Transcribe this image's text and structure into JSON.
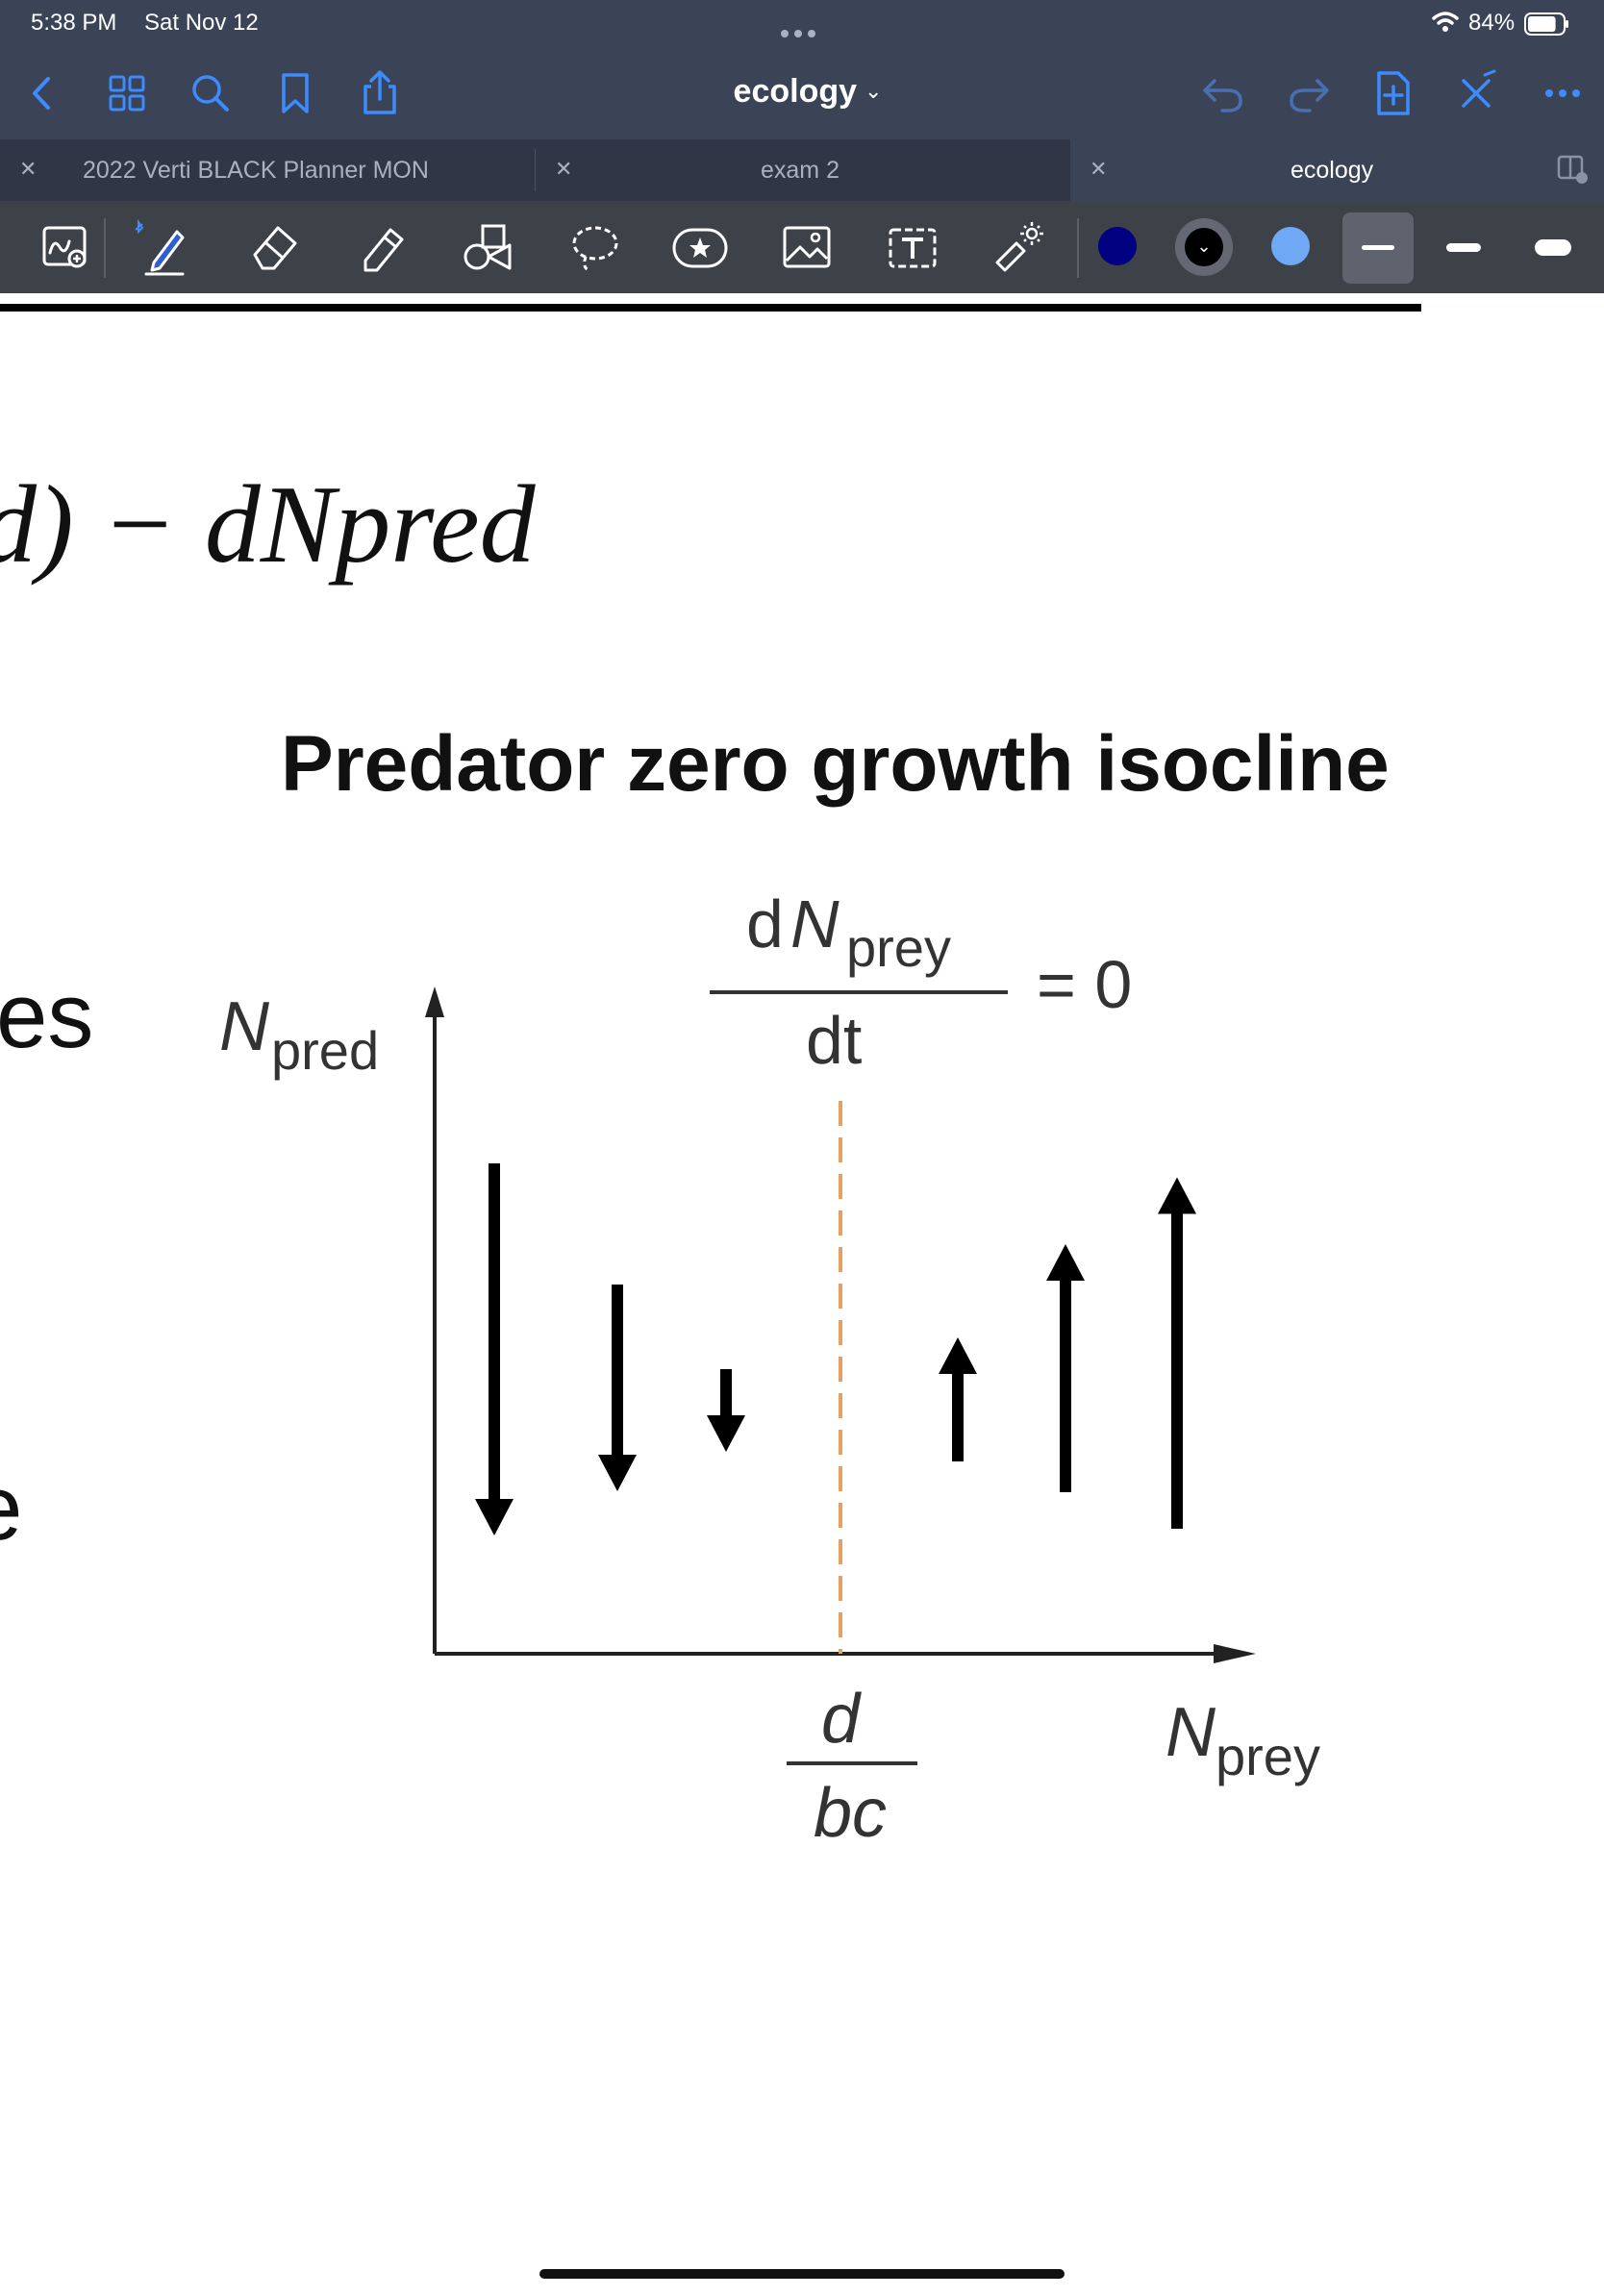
{
  "status_bar": {
    "time": "5:38 PM",
    "date": "Sat Nov 12",
    "battery": "84%",
    "battery_level": 0.84
  },
  "nav": {
    "document_title": "ecology",
    "icons": [
      "back-chevron-icon",
      "thumbnails-grid-icon",
      "search-icon",
      "bookmark-icon",
      "share-icon",
      "undo-icon",
      "redo-icon",
      "add-page-icon",
      "close-pen-mode-icon",
      "more-icon"
    ]
  },
  "tabs": [
    {
      "label": "2022 Verti BLACK Planner MON",
      "active": false
    },
    {
      "label": "exam 2",
      "active": false
    },
    {
      "label": "ecology",
      "active": true
    }
  ],
  "toolbar": {
    "tools": [
      "zoom-window-icon",
      "pen-icon",
      "eraser-icon",
      "highlighter-icon",
      "shapes-icon",
      "lasso-icon",
      "elements-icon",
      "image-icon",
      "text-icon",
      "laser-pointer-icon"
    ],
    "colors": [
      "#000080",
      "#000000",
      "#6fa8f5"
    ],
    "selected_color": "#000000",
    "stroke_widths": [
      "thin",
      "medium",
      "thick"
    ],
    "selected_stroke": "thin"
  },
  "page": {
    "formula_fragment": "d) − dNpred",
    "heading": "Predator zero growth isocline",
    "side_fragment_1": "es",
    "side_fragment_2": "e"
  },
  "diagram": {
    "y_axis_label_main": "N",
    "y_axis_label_sub": "pred",
    "x_axis_label_main": "N",
    "x_axis_label_sub": "prey",
    "isocline_label_top_d": "d",
    "isocline_label_top_N": "N",
    "isocline_label_top_sub": "prey",
    "isocline_label_bottom": "dt",
    "isocline_equals": "= 0",
    "threshold_numerator": "d",
    "threshold_denominator": "bc",
    "isocline_color": "#e8a060",
    "arrows": [
      {
        "direction": "down",
        "length": 0.9
      },
      {
        "direction": "down",
        "length": 0.5
      },
      {
        "direction": "down",
        "length": 0.2
      },
      {
        "direction": "up",
        "length": 0.3
      },
      {
        "direction": "up",
        "length": 0.6
      },
      {
        "direction": "up",
        "length": 0.85
      }
    ]
  }
}
